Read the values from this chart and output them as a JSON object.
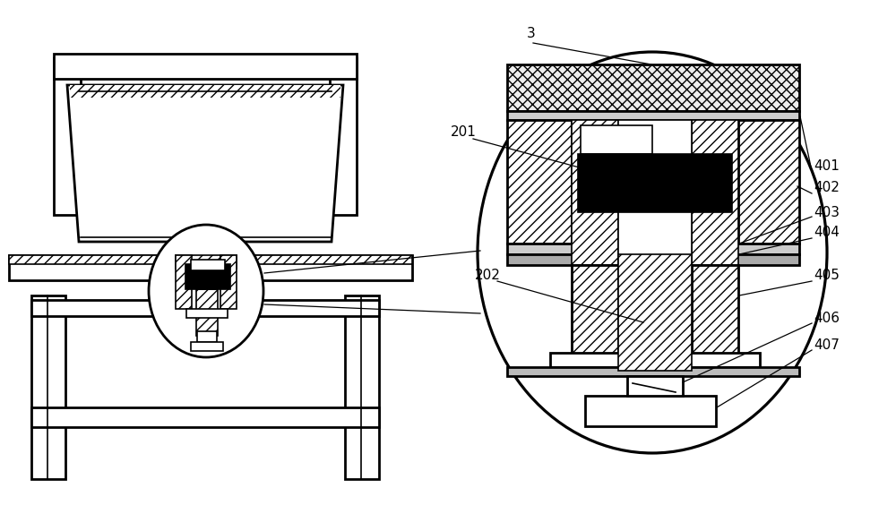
{
  "bg_color": "#ffffff",
  "line_color": "#000000",
  "lw_main": 2.0,
  "lw_thin": 1.2,
  "lw_ann": 0.9
}
